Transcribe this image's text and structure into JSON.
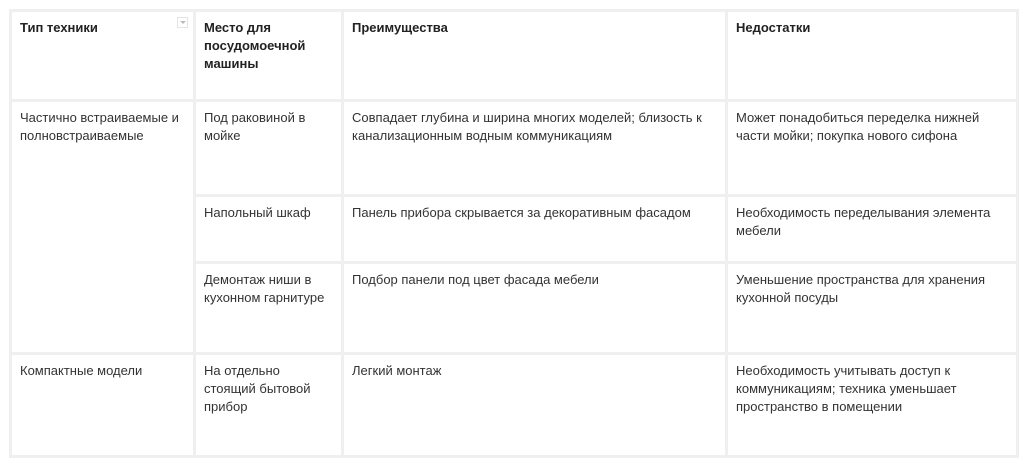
{
  "headers": [
    "Тип техники",
    "Место для посудомоечной машины",
    "Преимущества",
    "Недостатки"
  ],
  "groups": [
    {
      "type": "Частично встраиваемые и полновстраиваемые",
      "rows": [
        {
          "place": "Под раковиной в мойке",
          "pros": "Совпадает глубина и ширина многих моделей; близость к канализационным  водным коммуникациям",
          "cons": "Может понадобиться переделка нижней части мойки; покупка нового сифона"
        },
        {
          "place": "Напольный шкаф",
          "pros": "Панель прибора скрывается за декоративным фасадом",
          "cons": "Необходимость переделывания элемента мебели"
        },
        {
          "place": "Демонтаж ниши в кухонном гарнитуре",
          "pros": "Подбор панели под цвет фасада мебели",
          "cons": "Уменьшение пространства для хранения кухонной посуды"
        }
      ]
    },
    {
      "type": "Компактные модели",
      "rows": [
        {
          "place": "На отдельно стоящий бытовой прибор",
          "pros": "Легкий монтаж",
          "cons": "Необходимость учитывать доступ к коммуникациям; техника уменьшает пространство в помещении"
        }
      ]
    }
  ],
  "icons": {
    "filter": "dropdown-filter-icon"
  }
}
